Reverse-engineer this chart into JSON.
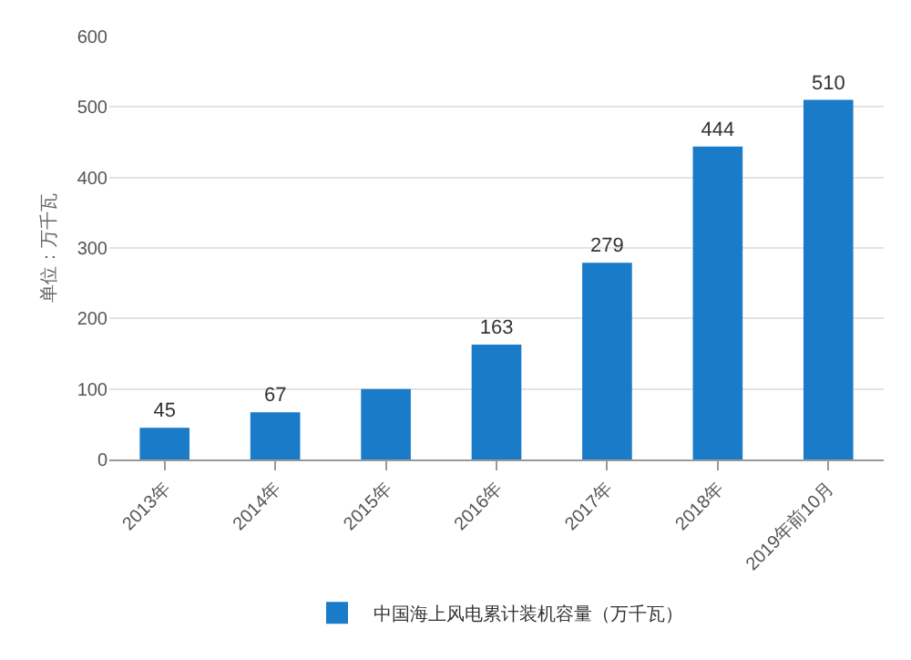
{
  "chart_data": {
    "type": "bar",
    "ylabel": "单位：万千瓦",
    "categories": [
      "2013年",
      "2014年",
      "2015年",
      "2016年",
      "2017年",
      "2018年",
      "2019年前10月"
    ],
    "series": [
      {
        "name": "中国海上风电累计装机容量（万千瓦）",
        "color": "#1a7bc9",
        "values": [
          45,
          67,
          100,
          163,
          279,
          444,
          510
        ],
        "value_labels": [
          "45",
          "67",
          null,
          "163",
          "279",
          "444",
          "510"
        ]
      }
    ],
    "ylim": [
      0,
      600
    ],
    "yticks": [
      0,
      100,
      200,
      300,
      400,
      500,
      600
    ],
    "grid": "y",
    "legend": "bottom"
  }
}
